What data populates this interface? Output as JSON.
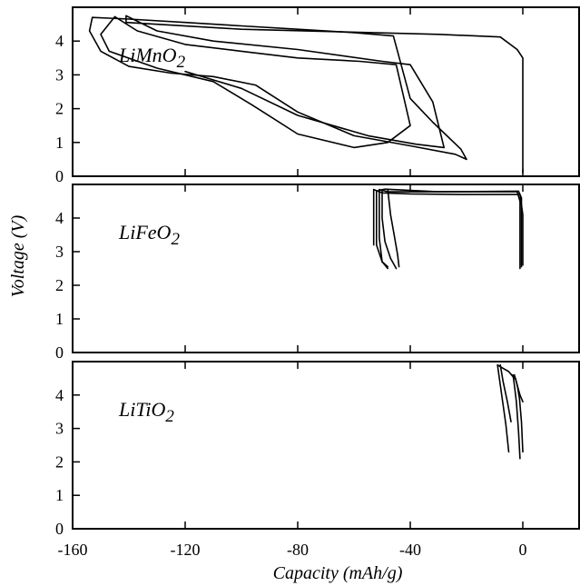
{
  "chart_data": [
    {
      "type": "line",
      "label_main": "LiMnO",
      "label_sub": "2",
      "xlim": [
        -160,
        20
      ],
      "ylim": [
        0,
        5
      ],
      "yticks": [
        0,
        1,
        2,
        3,
        4
      ],
      "series": [
        {
          "x": [
            0,
            0,
            -2,
            -8,
            -30,
            -100,
            -141,
            -141,
            -130,
            -110,
            -80,
            -50,
            -40,
            -32,
            -28,
            -38,
            -55,
            -80,
            -100,
            -112,
            -120
          ],
          "y": [
            0.1,
            3.5,
            3.75,
            4.12,
            4.2,
            4.35,
            4.55,
            4.75,
            4.3,
            4.0,
            3.75,
            3.4,
            3.3,
            2.2,
            0.85,
            0.95,
            1.2,
            1.8,
            2.6,
            2.9,
            3.1
          ]
        },
        {
          "x": [
            -20,
            -24,
            -40,
            -60,
            -80,
            -95,
            -110,
            -125,
            -140,
            -150,
            -154,
            -153,
            -140,
            -120,
            -100,
            -80,
            -60,
            -46,
            -40,
            -32,
            -22,
            -20
          ],
          "y": [
            0.5,
            0.65,
            0.9,
            1.2,
            1.9,
            2.7,
            2.95,
            3.05,
            3.25,
            3.7,
            4.3,
            4.7,
            4.65,
            4.55,
            4.45,
            4.35,
            4.25,
            4.15,
            2.3,
            1.6,
            0.8,
            0.5
          ]
        },
        {
          "x": [
            -145,
            -137,
            -120,
            -100,
            -80,
            -58,
            -45,
            -40,
            -48,
            -60,
            -80,
            -96,
            -110,
            -130,
            -147,
            -150,
            -145
          ],
          "y": [
            4.72,
            4.3,
            3.9,
            3.7,
            3.5,
            3.4,
            3.3,
            1.5,
            1.0,
            0.85,
            1.25,
            2.1,
            2.8,
            3.2,
            3.7,
            4.2,
            4.72
          ]
        }
      ]
    },
    {
      "type": "line",
      "label_main": "LiFeO",
      "label_sub": "2",
      "xlim": [
        -160,
        20
      ],
      "ylim": [
        0,
        5
      ],
      "yticks": [
        0,
        1,
        2,
        3,
        4
      ],
      "series": [
        {
          "x": [
            -1,
            -1,
            -2,
            -48,
            -51,
            -51,
            -50,
            -48
          ],
          "y": [
            2.5,
            4.5,
            4.78,
            4.78,
            4.85,
            3.4,
            2.7,
            2.5
          ]
        },
        {
          "x": [
            -0.5,
            -0.5,
            -1.5,
            -30,
            -49,
            -52,
            -52,
            -50,
            -48
          ],
          "y": [
            2.55,
            4.6,
            4.8,
            4.78,
            4.86,
            4.8,
            3.2,
            2.7,
            2.55
          ]
        },
        {
          "x": [
            -45,
            -47,
            -49,
            -50,
            -50
          ],
          "y": [
            2.5,
            2.8,
            3.3,
            4.0,
            4.85
          ]
        },
        {
          "x": [
            0,
            0,
            -1,
            -20,
            -40,
            -50,
            -53,
            -53
          ],
          "y": [
            2.6,
            4.1,
            4.7,
            4.7,
            4.72,
            4.75,
            4.85,
            3.2
          ]
        },
        {
          "x": [
            -44,
            -44.5,
            -45.5,
            -47,
            -48
          ],
          "y": [
            2.55,
            2.9,
            3.4,
            4.1,
            4.85
          ]
        }
      ]
    },
    {
      "type": "line",
      "label_main": "LiTiO",
      "label_sub": "2",
      "xlim": [
        -160,
        20
      ],
      "ylim": [
        0,
        5
      ],
      "yticks": [
        0,
        1,
        2,
        3,
        4
      ],
      "series": [
        {
          "x": [
            -5,
            -6,
            -7,
            -8,
            -9,
            -7,
            -5,
            -4,
            -3
          ],
          "y": [
            2.3,
            3.1,
            3.7,
            4.3,
            4.9,
            4.8,
            4.7,
            4.6,
            4.5
          ]
        },
        {
          "x": [
            -1,
            -1.5,
            -2.3,
            -3,
            -3.5
          ],
          "y": [
            2.1,
            2.9,
            3.8,
            4.3,
            4.6
          ]
        },
        {
          "x": [
            0,
            -0.5,
            -1.2,
            -2,
            -2.6
          ],
          "y": [
            2.3,
            3.2,
            3.9,
            4.3,
            4.5
          ]
        },
        {
          "x": [
            -8,
            -7,
            -5.5,
            -4.2
          ],
          "y": [
            4.9,
            4.4,
            3.8,
            3.2
          ]
        },
        {
          "x": [
            -3,
            -2,
            -1,
            0
          ],
          "y": [
            4.6,
            4.3,
            4.0,
            3.8
          ]
        }
      ]
    }
  ],
  "x_axis": {
    "label": "Capacity (mAh/g)",
    "ticks": [
      -160,
      -120,
      -80,
      -40,
      0
    ]
  },
  "y_axis": {
    "label": "Voltage (V)"
  }
}
